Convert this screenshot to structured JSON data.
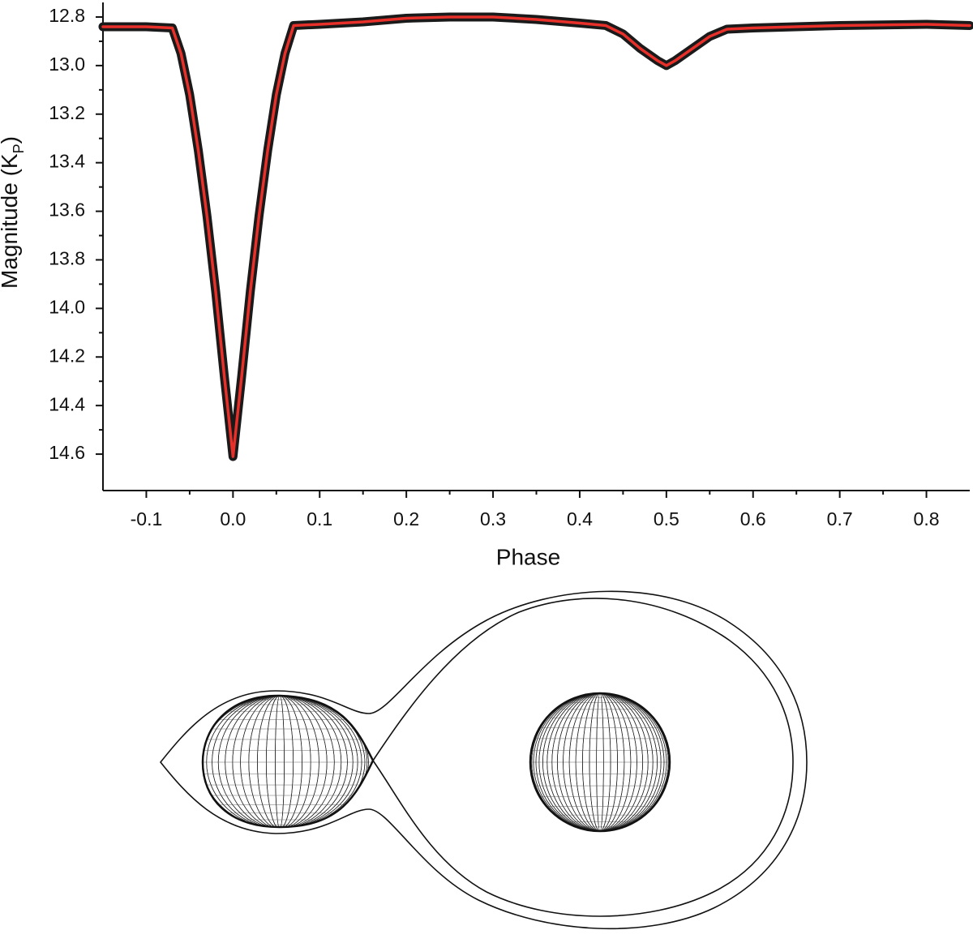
{
  "chart_data": {
    "type": "line",
    "xlabel": "Phase",
    "ylabel_parts": [
      "Magnitude (K",
      "P",
      ")"
    ],
    "x": [
      -0.15,
      -0.1,
      -0.07,
      -0.06,
      -0.05,
      -0.04,
      -0.03,
      -0.02,
      -0.01,
      0,
      0.01,
      0.02,
      0.03,
      0.04,
      0.05,
      0.06,
      0.07,
      0.1,
      0.15,
      0.2,
      0.25,
      0.3,
      0.35,
      0.4,
      0.43,
      0.45,
      0.47,
      0.49,
      0.5,
      0.51,
      0.53,
      0.55,
      0.57,
      0.6,
      0.7,
      0.8,
      0.85
    ],
    "series": [
      {
        "color": "#1a1a1a",
        "values": [
          12.84,
          12.84,
          12.845,
          12.95,
          13.12,
          13.35,
          13.62,
          13.93,
          14.28,
          14.61,
          14.28,
          13.93,
          13.62,
          13.35,
          13.12,
          12.95,
          12.835,
          12.83,
          12.82,
          12.805,
          12.8,
          12.8,
          12.81,
          12.825,
          12.835,
          12.87,
          12.93,
          12.98,
          13.0,
          12.98,
          12.93,
          12.88,
          12.85,
          12.845,
          12.835,
          12.83,
          12.835
        ]
      },
      {
        "color": "#e8302a",
        "values": [
          12.84,
          12.84,
          12.845,
          12.95,
          13.12,
          13.35,
          13.62,
          13.93,
          14.28,
          14.61,
          14.28,
          13.93,
          13.62,
          13.35,
          13.12,
          12.95,
          12.835,
          12.83,
          12.82,
          12.805,
          12.8,
          12.8,
          12.81,
          12.825,
          12.835,
          12.87,
          12.93,
          12.98,
          13.0,
          12.98,
          12.93,
          12.88,
          12.85,
          12.845,
          12.835,
          12.83,
          12.835
        ]
      }
    ],
    "xlim": [
      -0.15,
      0.85
    ],
    "xticks": [
      -0.1,
      {
        "value": 0,
        "label": "0.0"
      },
      0.1,
      0.2,
      0.3,
      0.4,
      0.5,
      0.6,
      0.7,
      0.8
    ],
    "ylim": [
      14.75,
      12.74
    ],
    "yticks": [
      12.8,
      {
        "value": 13,
        "label": "13.0"
      },
      13.2,
      13.4,
      13.6,
      13.8,
      {
        "value": 14,
        "label": "14.0"
      },
      14.2,
      14.4,
      14.6
    ],
    "grid": false
  }
}
